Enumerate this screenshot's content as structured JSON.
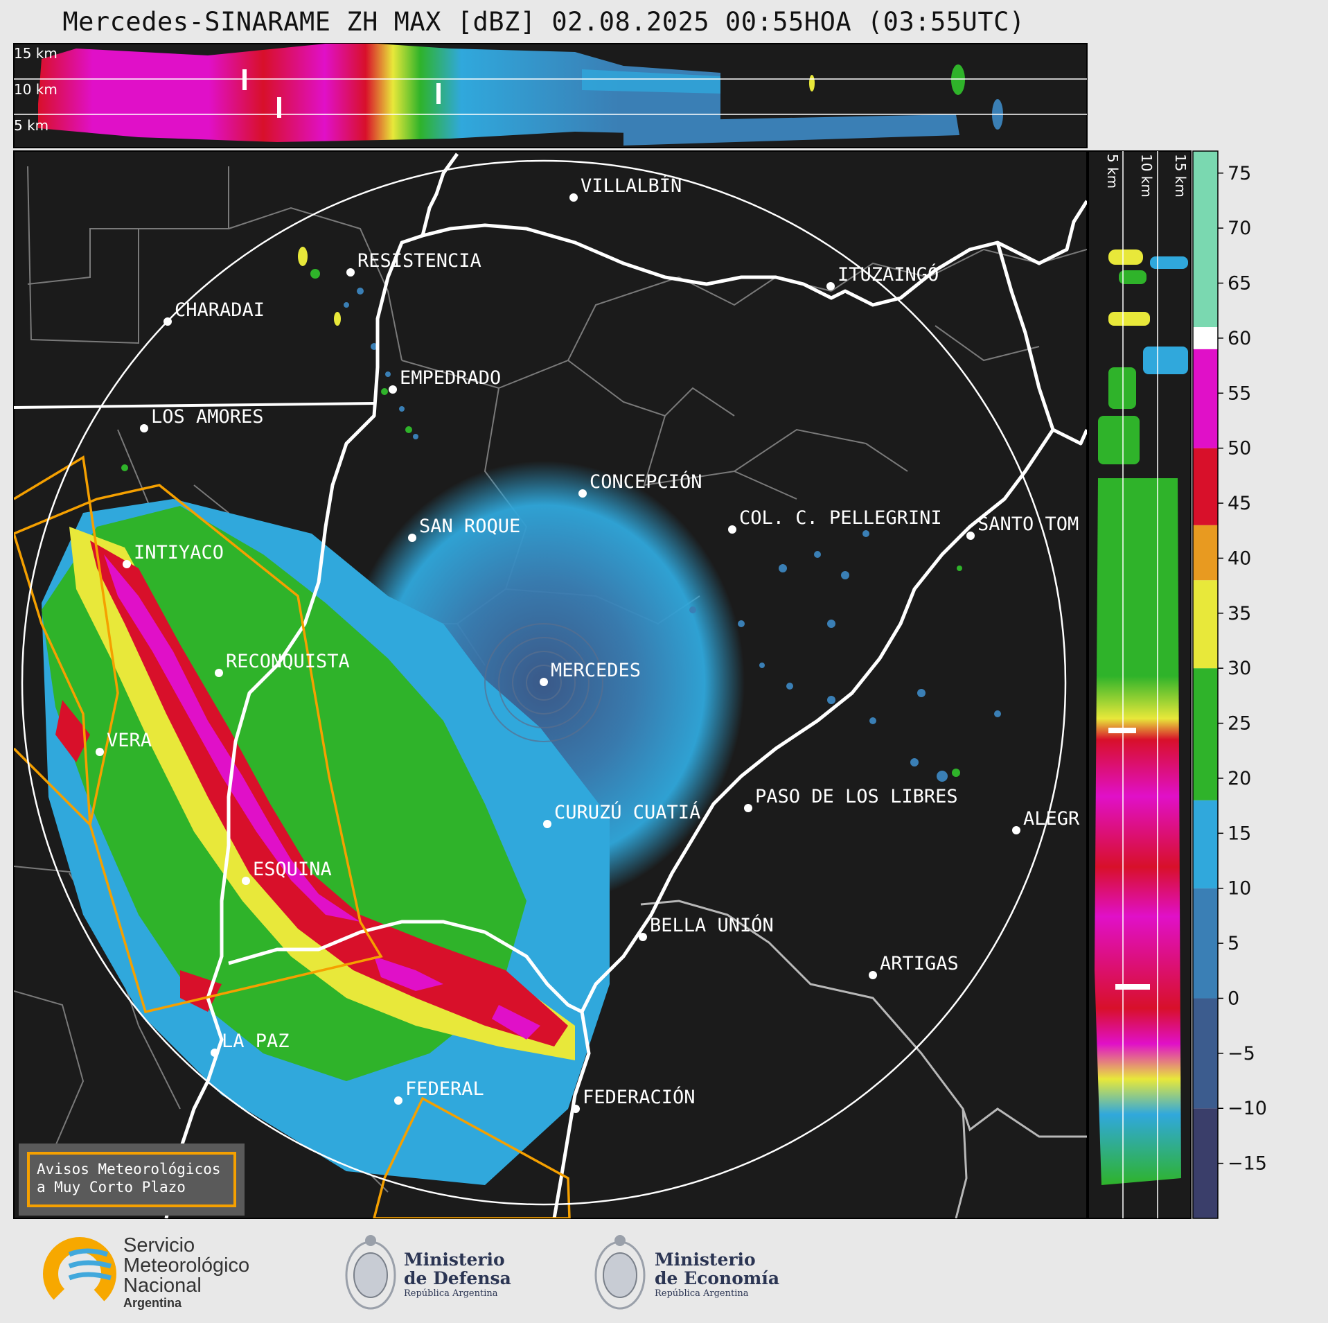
{
  "title": "Mercedes-SINARAME ZH MAX [dBZ] 02.08.2025 00:55HOA (03:55UTC)",
  "top_panel": {
    "height_labels": [
      "15 km",
      "10 km",
      "5 km"
    ]
  },
  "side_panel": {
    "height_labels": [
      "5 km",
      "10 km",
      "15 km"
    ]
  },
  "colorbar": {
    "ticks": [
      "75",
      "70",
      "65",
      "60",
      "55",
      "50",
      "45",
      "40",
      "35",
      "30",
      "25",
      "20",
      "15",
      "10",
      "5",
      "0",
      "−5",
      "−10",
      "−15"
    ],
    "tick_values": [
      75,
      70,
      65,
      60,
      55,
      50,
      45,
      40,
      35,
      30,
      25,
      20,
      15,
      10,
      5,
      0,
      -5,
      -10,
      -15
    ],
    "range": [
      -20,
      77
    ],
    "colors": [
      {
        "from": -20,
        "to": -10,
        "color": "#3a3e6a"
      },
      {
        "from": -10,
        "to": 0,
        "color": "#3c5c8e"
      },
      {
        "from": 0,
        "to": 10,
        "color": "#3a7fb5"
      },
      {
        "from": 10,
        "to": 18,
        "color": "#30a8dc"
      },
      {
        "from": 18,
        "to": 30,
        "color": "#2fb32a"
      },
      {
        "from": 30,
        "to": 38,
        "color": "#e8e83a"
      },
      {
        "from": 38,
        "to": 43,
        "color": "#e89a20"
      },
      {
        "from": 43,
        "to": 50,
        "color": "#d8102a"
      },
      {
        "from": 50,
        "to": 59,
        "color": "#e010c8"
      },
      {
        "from": 59,
        "to": 61,
        "color": "#ffffff"
      },
      {
        "from": 61,
        "to": 77,
        "color": "#7ad8b0"
      }
    ]
  },
  "cities": [
    {
      "name": "VILLALBÍN"
    },
    {
      "name": "RESISTENCIA"
    },
    {
      "name": "CHARADAI"
    },
    {
      "name": "EMPEDRADO"
    },
    {
      "name": "LOS AMORES"
    },
    {
      "name": "ITUZAINGÓ"
    },
    {
      "name": "CONCEPCIÓN"
    },
    {
      "name": "SAN ROQUE"
    },
    {
      "name": "COL. C. PELLEGRINI"
    },
    {
      "name": "SANTO TOM"
    },
    {
      "name": "INTIYACO"
    },
    {
      "name": "RECONQUISTA"
    },
    {
      "name": "MERCEDES"
    },
    {
      "name": "VERA"
    },
    {
      "name": "PASO DE LOS LIBRES"
    },
    {
      "name": "CURUZÚ CUATIÁ"
    },
    {
      "name": "ALEGR"
    },
    {
      "name": "ESQUINA"
    },
    {
      "name": "BELLA UNIÓN"
    },
    {
      "name": "ARTIGAS"
    },
    {
      "name": "LA PAZ"
    },
    {
      "name": "FEDERAL"
    },
    {
      "name": "FEDERACIÓN"
    }
  ],
  "alert_box": {
    "line1": "Avisos Meteorológicos",
    "line2": "a Muy Corto Plazo"
  },
  "logos": {
    "smn": {
      "line1": "Servicio",
      "line2": "Meteorológico",
      "line3": "Nacional",
      "line4": "Argentina"
    },
    "defensa": {
      "line1": "Ministerio",
      "line2": "de Defensa",
      "line3": "República Argentina"
    },
    "economia": {
      "line1": "Ministerio",
      "line2": "de Economía",
      "line3": "República Argentina"
    }
  },
  "colors": {
    "map_bg": "#1b1b1b",
    "rivers": "#ffffff",
    "borders": "#7a7a7a",
    "warning_polygons": "#f5a000",
    "range_ring": "#ffffff"
  }
}
